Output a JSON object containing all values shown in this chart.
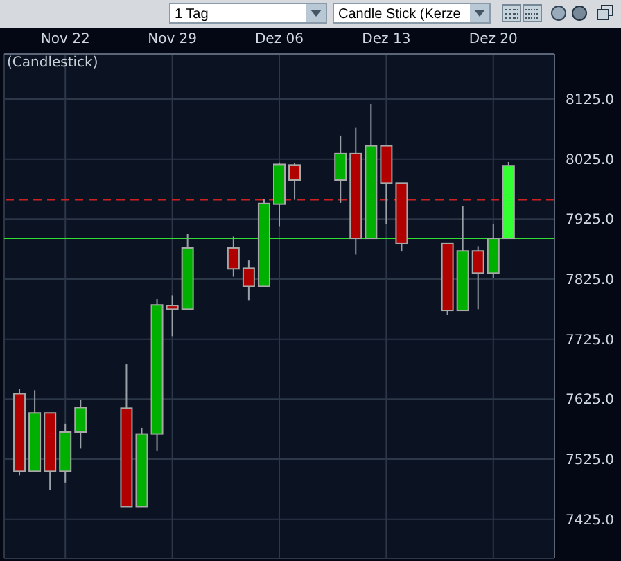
{
  "chart_data": {
    "type": "candlestick",
    "title": "(Candlestick)",
    "annotations": [
      "1 Tag",
      "Candle Stick (Kerze"
    ],
    "x": [
      "--11-19",
      "--11-20",
      "--11-21",
      "--11-22",
      "--11-23",
      "--11-26",
      "--11-27",
      "--11-28",
      "--11-29",
      "--11-30",
      "--12-03",
      "--12-04",
      "--12-05",
      "--12-06",
      "--12-07",
      "--12-10",
      "--12-11",
      "--12-12",
      "--12-13",
      "--12-14",
      "--12-17",
      "--12-18",
      "--12-19",
      "--12-20",
      "--12-21"
    ],
    "ohlc": [
      [
        7634,
        7642,
        7498,
        7505
      ],
      [
        7505,
        7640,
        7505,
        7602
      ],
      [
        7602,
        7602,
        7474,
        7505
      ],
      [
        7505,
        7584,
        7486,
        7570
      ],
      [
        7570,
        7624,
        7543,
        7611
      ],
      [
        7610,
        7683,
        7446,
        7446
      ],
      [
        7446,
        7577,
        7446,
        7567
      ],
      [
        7567,
        7792,
        7539,
        7782
      ],
      [
        7781,
        7798,
        7730,
        7775
      ],
      [
        7775,
        7900,
        7775,
        7877
      ],
      [
        7877,
        7896,
        7829,
        7842
      ],
      [
        7843,
        7856,
        7790,
        7813
      ],
      [
        7813,
        7958,
        7813,
        7951
      ],
      [
        7950,
        8019,
        7912,
        8016
      ],
      [
        8015,
        8018,
        7957,
        7990
      ],
      [
        7990,
        8064,
        7952,
        8034
      ],
      [
        8034,
        8077,
        7866,
        7893
      ],
      [
        7893,
        8117,
        7893,
        8047
      ],
      [
        8047,
        8047,
        7917,
        7985
      ],
      [
        7985,
        7985,
        7871,
        7884
      ],
      [
        7884,
        7884,
        7765,
        7773
      ],
      [
        7773,
        7947,
        7773,
        7872
      ],
      [
        7872,
        7880,
        7775,
        7835
      ],
      [
        7835,
        7917,
        7827,
        7893
      ],
      [
        7893,
        8020,
        7893,
        8014
      ]
    ],
    "colors": [
      "#b00000",
      "#00b000",
      "#b00000",
      "#00b000",
      "#00b000",
      "#b00000",
      "#00b000",
      "#00b000",
      "#b00000",
      "#00b000",
      "#b00000",
      "#b00000",
      "#00b000",
      "#00b000",
      "#b00000",
      "#00b000",
      "#b00000",
      "#00b000",
      "#b00000",
      "#b00000",
      "#b00000",
      "#00b000",
      "#b00000",
      "#00b000",
      "#33ff33"
    ],
    "xlim": [
      "--11-18",
      "--12-24"
    ],
    "xticks": [
      {
        "value": "--11-22",
        "label": "Nov 22"
      },
      {
        "value": "--11-29",
        "label": "Nov 29"
      },
      {
        "value": "--12-06",
        "label": "Dez 06"
      },
      {
        "value": "--12-13",
        "label": "Dez 13"
      },
      {
        "value": "--12-20",
        "label": "Dez 20"
      }
    ],
    "ylim": [
      7360,
      8200
    ],
    "yticks": [
      {
        "value": 7425,
        "label": "7425.0"
      },
      {
        "value": 7525,
        "label": "7525.0"
      },
      {
        "value": 7625,
        "label": "7625.0"
      },
      {
        "value": 7725,
        "label": "7725.0"
      },
      {
        "value": 7825,
        "label": "7825.0"
      },
      {
        "value": 7925,
        "label": "7925.0"
      },
      {
        "value": 8025,
        "label": "8025.0"
      },
      {
        "value": 8125,
        "label": "8125.0"
      }
    ],
    "ref_lines": [
      {
        "axis": "y",
        "value": 7957,
        "color": "#cc2222",
        "line_style": "dashed"
      },
      {
        "axis": "y",
        "value": 7893,
        "color": "#33dd33",
        "line_style": "solid"
      }
    ],
    "grid": true
  }
}
